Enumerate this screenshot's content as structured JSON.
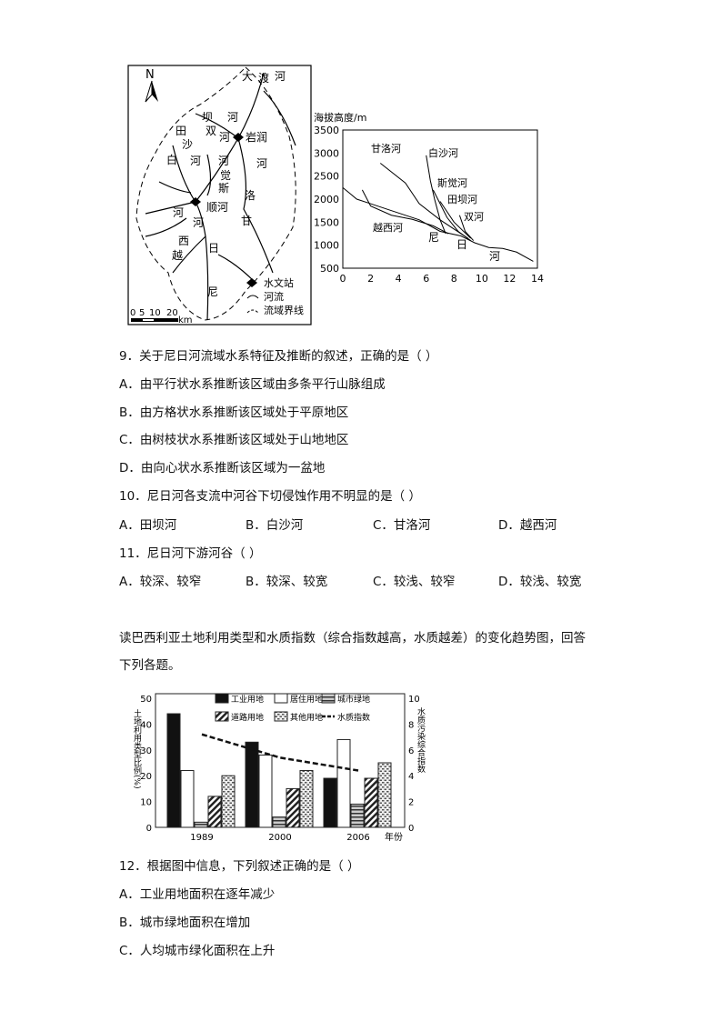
{
  "map": {
    "north": "N",
    "labels": [
      {
        "text": "大",
        "x": 266,
        "y": 88
      },
      {
        "text": "渡",
        "x": 284,
        "y": 90
      },
      {
        "text": "河",
        "x": 302,
        "y": 88
      },
      {
        "text": "坝",
        "x": 222,
        "y": 133
      },
      {
        "text": "河",
        "x": 250,
        "y": 133
      },
      {
        "text": "田",
        "x": 193,
        "y": 148
      },
      {
        "text": "双",
        "x": 226,
        "y": 148
      },
      {
        "text": "河",
        "x": 241,
        "y": 155
      },
      {
        "text": "岩润",
        "x": 270,
        "y": 155
      },
      {
        "text": "沙",
        "x": 200,
        "y": 163
      },
      {
        "text": "白",
        "x": 183,
        "y": 180
      },
      {
        "text": "河",
        "x": 209,
        "y": 181
      },
      {
        "text": "河",
        "x": 240,
        "y": 181
      },
      {
        "text": "河",
        "x": 282,
        "y": 184
      },
      {
        "text": "觉",
        "x": 242,
        "y": 197
      },
      {
        "text": "斯",
        "x": 240,
        "y": 211
      },
      {
        "text": "洛",
        "x": 269,
        "y": 219
      },
      {
        "text": "顺河",
        "x": 227,
        "y": 232
      },
      {
        "text": "河",
        "x": 190,
        "y": 238
      },
      {
        "text": "河",
        "x": 212,
        "y": 249
      },
      {
        "text": "甘",
        "x": 265,
        "y": 247
      },
      {
        "text": "西",
        "x": 196,
        "y": 269
      },
      {
        "text": "日",
        "x": 229,
        "y": 277
      },
      {
        "text": "越",
        "x": 189,
        "y": 285
      },
      {
        "text": "尼",
        "x": 228,
        "y": 325
      }
    ],
    "legend": [
      "水文站",
      "河流",
      "流域界线"
    ],
    "scale_ticks": [
      "0",
      "5",
      "10",
      "20"
    ],
    "scale_unit": "km"
  },
  "profile_chart": {
    "type": "line",
    "ylabel": "海拔高度/m",
    "ylim": [
      500,
      3500
    ],
    "xlim": [
      0,
      14
    ],
    "yticks": [
      "3500",
      "3000",
      "2500",
      "2000",
      "1500",
      "1000",
      "500"
    ],
    "xticks": [
      "0",
      "2",
      "4",
      "6",
      "8",
      "10",
      "12",
      "14"
    ],
    "series": [
      {
        "name": "甘洛河",
        "points": [
          [
            2.7,
            2780
          ],
          [
            4.5,
            2350
          ],
          [
            5.5,
            1900
          ],
          [
            7,
            1550
          ],
          [
            8,
            1350
          ],
          [
            9,
            1150
          ]
        ]
      },
      {
        "name": "白沙河",
        "points": [
          [
            6,
            2950
          ],
          [
            6.3,
            2400
          ],
          [
            6.6,
            2000
          ],
          [
            7,
            1550
          ],
          [
            7.4,
            1250
          ]
        ]
      },
      {
        "name": "斯觉河",
        "points": [
          [
            6.5,
            2200
          ],
          [
            7.5,
            1600
          ],
          [
            8.3,
            1300
          ],
          [
            9.2,
            1100
          ]
        ]
      },
      {
        "name": "田坝河",
        "points": [
          [
            7,
            1950
          ],
          [
            8,
            1500
          ],
          [
            9.2,
            1150
          ]
        ]
      },
      {
        "name": "双河",
        "points": [
          [
            8.4,
            1650
          ],
          [
            8.8,
            1300
          ],
          [
            9.4,
            1100
          ]
        ]
      },
      {
        "name": "越西河",
        "points": [
          [
            1.4,
            2200
          ],
          [
            2,
            1850
          ],
          [
            3.5,
            1650
          ],
          [
            5,
            1560
          ],
          [
            6.5,
            1420
          ],
          [
            7.6,
            1250
          ]
        ]
      },
      {
        "name": "尼日河",
        "points": [
          [
            0,
            2250
          ],
          [
            1,
            2000
          ],
          [
            2,
            1900
          ],
          [
            3.5,
            1750
          ],
          [
            5.5,
            1550
          ],
          [
            7,
            1300
          ],
          [
            8.5,
            1200
          ],
          [
            9.5,
            1050
          ],
          [
            10.5,
            950
          ],
          [
            11.5,
            930
          ],
          [
            12.5,
            850
          ],
          [
            13.7,
            650
          ]
        ]
      }
    ],
    "main_river_chars": [
      "尼",
      "日",
      "河"
    ]
  },
  "questions": {
    "q9": {
      "stem": "9．关于尼日河流域水系特征及推断的叙述，正确的是（    ）",
      "options": [
        "A．由平行状水系推断该区域由多条平行山脉组成",
        "B．由方格状水系推断该区域处于平原地区",
        "C．由树枝状水系推断该区域处于山地地区",
        "D．由向心状水系推断该区域为一盆地"
      ]
    },
    "q10": {
      "stem": "10．尼日河各支流中河谷下切侵蚀作用不明显的是（    ）",
      "options": [
        "A．田坝河",
        "B．白沙河",
        "C．甘洛河",
        "D．越西河"
      ]
    },
    "q11": {
      "stem": "11．尼日河下游河谷（    ）",
      "options": [
        "A．较深、较窄",
        "B．较深、较宽",
        "C．较浅、较窄",
        "D．较浅、较宽"
      ]
    },
    "intro": [
      "读巴西利亚土地利用类型和水质指数（综合指数越高，水质越差）的变化趋势图，回答",
      "下列各题。"
    ],
    "q12": {
      "stem": "12．根据图中信息，下列叙述正确的是（    ）",
      "options": [
        "A．工业用地面积在逐年减少",
        "B．城市绿地面积在增加",
        "C．人均城市绿化面积在上升"
      ]
    }
  },
  "chart_data": {
    "type": "bar",
    "categories": [
      "1989",
      "2000",
      "2006"
    ],
    "xlabel": "年份",
    "ylabel": "土地利用类型比例(%)",
    "ylabel2": "水质污染综合指数",
    "ylim": [
      0,
      50
    ],
    "ylim2": [
      0,
      10
    ],
    "yticks": [
      "0",
      "10",
      "20",
      "30",
      "40",
      "50"
    ],
    "yticks2": [
      "0",
      "2",
      "4",
      "6",
      "8",
      "10"
    ],
    "series": [
      {
        "name": "工业用地",
        "values": [
          44,
          33,
          19
        ]
      },
      {
        "name": "居住用地",
        "values": [
          22,
          28,
          34
        ]
      },
      {
        "name": "城市绿地",
        "values": [
          2,
          4,
          9
        ]
      },
      {
        "name": "道路用地",
        "values": [
          12,
          15,
          19
        ]
      },
      {
        "name": "其他用地",
        "values": [
          20,
          22,
          25
        ]
      }
    ],
    "line": {
      "name": "水质指数",
      "x": [
        "1989",
        "2000",
        "2006"
      ],
      "values": [
        7.2,
        5.4,
        4.4
      ]
    },
    "legend": "top"
  }
}
